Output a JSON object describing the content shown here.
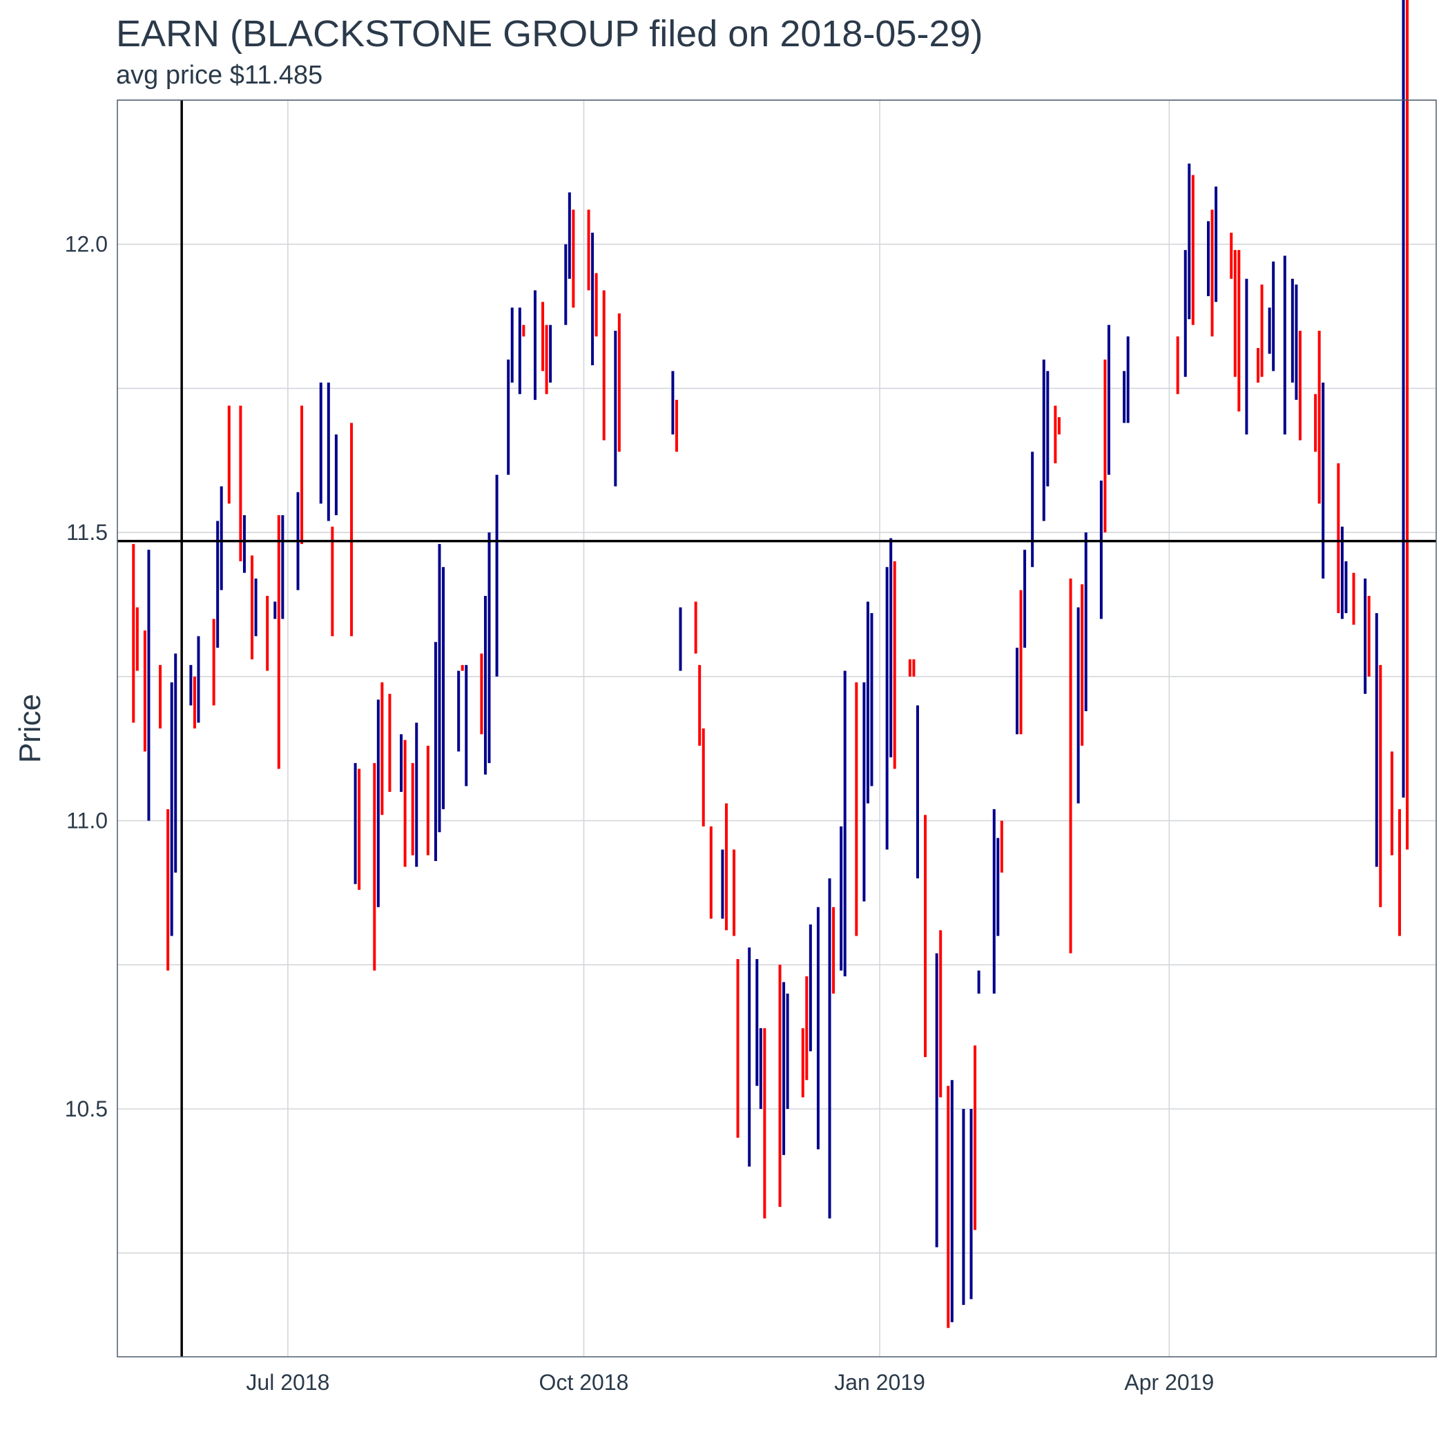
{
  "chart_data": {
    "type": "ohlc",
    "title": "EARN (BLACKSTONE GROUP filed on 2018-05-29)",
    "subtitle": "avg price $11.485",
    "xlabel": "",
    "ylabel": "Price",
    "ylim": [
      10.07,
      12.25
    ],
    "xlim": [
      "2018-05-09",
      "2019-06-23"
    ],
    "y_ticks": [
      10.5,
      11.0,
      11.5,
      12.0
    ],
    "x_ticks": [
      {
        "date": "2018-07-01",
        "label": "Jul 2018"
      },
      {
        "date": "2018-10-01",
        "label": "Oct 2018"
      },
      {
        "date": "2019-01-01",
        "label": "Jan 2019"
      },
      {
        "date": "2019-04-01",
        "label": "Apr 2019"
      }
    ],
    "grid": true,
    "colors": {
      "up": "#00008b",
      "down": "#ff0000",
      "reference": "#000000",
      "grid": "#d3d6db",
      "border": "#4a5a6a"
    },
    "reference_lines": {
      "vertical_date": "2018-05-29",
      "horizontal_price": 11.485
    },
    "series": [
      {
        "name": "high",
        "values": [
          11.48,
          11.37,
          11.33,
          11.47,
          11.27,
          11.02,
          11.24,
          11.29,
          11.27,
          11.25,
          11.32,
          11.35,
          11.52,
          11.58,
          11.72,
          11.72,
          11.53,
          11.46,
          11.42,
          11.39,
          11.38,
          11.53,
          11.53,
          11.57,
          11.72,
          11.76,
          11.76,
          11.51,
          11.67,
          11.69,
          11.1,
          11.09,
          11.1,
          11.21,
          11.24,
          11.22,
          11.15,
          11.14,
          11.1,
          11.17,
          11.13,
          11.31,
          11.48,
          11.44,
          11.26,
          11.27,
          11.27,
          11.29,
          11.39,
          11.5,
          11.6,
          11.8,
          11.89,
          11.89,
          11.86,
          11.92,
          11.9,
          11.86,
          11.86,
          12.0,
          12.09,
          12.06,
          12.06,
          12.02,
          11.95,
          11.92,
          11.85,
          11.88,
          11.78,
          11.73,
          11.37,
          11.38,
          11.27,
          11.16,
          10.99,
          10.95,
          11.03,
          10.95,
          10.76,
          10.78,
          10.76,
          10.64,
          10.64,
          10.75,
          10.72,
          10.7,
          10.64,
          10.73,
          10.82,
          10.85,
          10.9,
          10.85,
          10.99,
          11.26,
          11.24,
          11.24,
          11.38,
          11.36,
          11.44,
          11.49,
          11.45,
          11.25,
          11.25,
          11.2,
          11.01,
          10.77,
          10.81,
          10.54,
          10.55,
          10.5,
          10.5,
          10.61,
          10.74,
          11.02,
          10.97,
          11.0,
          11.3,
          11.4,
          11.47,
          11.64,
          11.8,
          11.78,
          11.72,
          11.67,
          11.42,
          11.37,
          11.41,
          11.5,
          11.59,
          11.8,
          11.86,
          11.78,
          11.84,
          11.84,
          11.99,
          12.14,
          12.12,
          12.04,
          12.06,
          12.1,
          12.02,
          11.99,
          11.99,
          11.94,
          11.82,
          11.93,
          11.89,
          11.97,
          11.98,
          11.94,
          11.93,
          11.85,
          11.74,
          11.85,
          11.76,
          11.62,
          11.51,
          11.45,
          11.43,
          11.42,
          11.39,
          11.36,
          11.27,
          11.12,
          11.02,
          11.04,
          10.95
        ]
      },
      {
        "name": "low",
        "values": [
          11.17,
          11.26,
          11.12,
          11.0,
          11.16,
          10.74,
          10.8,
          10.91,
          11.2,
          11.16,
          11.17,
          11.2,
          11.3,
          11.4,
          11.55,
          11.45,
          11.43,
          11.28,
          11.32,
          11.26,
          11.35,
          11.09,
          11.35,
          11.4,
          11.48,
          11.55,
          11.52,
          11.32,
          11.53,
          11.32,
          10.89,
          10.88,
          10.74,
          10.85,
          11.01,
          11.05,
          11.05,
          10.92,
          10.94,
          10.92,
          10.94,
          10.93,
          10.98,
          11.02,
          11.12,
          11.26,
          11.06,
          11.15,
          11.08,
          11.1,
          11.25,
          11.6,
          11.76,
          11.74,
          11.84,
          11.73,
          11.78,
          11.74,
          11.76,
          11.86,
          11.94,
          11.89,
          11.92,
          11.79,
          11.84,
          11.66,
          11.58,
          11.64,
          11.67,
          11.64,
          11.26,
          11.29,
          11.13,
          10.99,
          10.83,
          10.83,
          10.81,
          10.8,
          10.45,
          10.4,
          10.54,
          10.5,
          10.31,
          10.33,
          10.42,
          10.5,
          10.52,
          10.55,
          10.6,
          10.43,
          10.31,
          10.7,
          10.74,
          10.73,
          10.8,
          10.86,
          11.03,
          11.06,
          10.95,
          11.11,
          11.09,
          11.28,
          11.28,
          10.9,
          10.59,
          10.26,
          10.52,
          10.12,
          10.13,
          10.16,
          10.17,
          10.29,
          10.7,
          10.7,
          10.8,
          10.91,
          11.15,
          11.15,
          11.3,
          11.44,
          11.52,
          11.58,
          11.62,
          11.7,
          10.77,
          11.03,
          11.13,
          11.19,
          11.35,
          11.5,
          11.6,
          11.69,
          11.69,
          11.74,
          11.77,
          11.87,
          11.86,
          11.91,
          11.84,
          11.9,
          11.94,
          11.77,
          11.71,
          11.67,
          11.76,
          11.77,
          11.81,
          11.78,
          11.67,
          11.76,
          11.73,
          11.66,
          11.64,
          11.55,
          11.42,
          11.36,
          11.35,
          11.36,
          11.34,
          11.22,
          11.25,
          10.92,
          10.85,
          10.94,
          10.8
        ]
      },
      {
        "name": "direction",
        "values": [
          "down",
          "down",
          "down",
          "up",
          "down",
          "down",
          "up",
          "up",
          "up",
          "down",
          "up",
          "down",
          "up",
          "up",
          "down",
          "down",
          "up",
          "down",
          "up",
          "down",
          "up",
          "down",
          "up",
          "up",
          "down",
          "up",
          "up",
          "down",
          "up",
          "down",
          "up",
          "down",
          "down",
          "up",
          "down",
          "down",
          "up",
          "down",
          "down",
          "up",
          "down",
          "up",
          "up",
          "up",
          "up",
          "down",
          "up",
          "down",
          "up",
          "up",
          "up",
          "up",
          "up",
          "up",
          "down",
          "up",
          "down",
          "down",
          "up",
          "up",
          "up",
          "down",
          "down",
          "up",
          "down",
          "down",
          "up",
          "down",
          "up",
          "down",
          "up",
          "down",
          "down",
          "down",
          "down",
          "up",
          "down",
          "down",
          "down",
          "up",
          "up",
          "up",
          "down",
          "down",
          "up",
          "up",
          "down",
          "down",
          "up",
          "up",
          "up",
          "down",
          "up",
          "up",
          "down",
          "up",
          "up",
          "up",
          "up",
          "up",
          "down",
          "down",
          "down",
          "up",
          "down",
          "up",
          "down",
          "down",
          "up",
          "up",
          "up",
          "down",
          "up",
          "up",
          "up",
          "down",
          "up",
          "down",
          "up",
          "up",
          "up",
          "up",
          "down",
          "down",
          "down",
          "up",
          "down",
          "up",
          "up",
          "down",
          "up",
          "up",
          "up",
          "down",
          "up",
          "up",
          "down",
          "up",
          "down",
          "up",
          "down",
          "down",
          "down",
          "up",
          "down",
          "down",
          "up",
          "up",
          "up",
          "up",
          "up",
          "down",
          "down",
          "down",
          "up",
          "down",
          "up",
          "up",
          "down",
          "up",
          "down",
          "up",
          "down",
          "down",
          "down",
          "up",
          "down"
        ]
      }
    ]
  }
}
